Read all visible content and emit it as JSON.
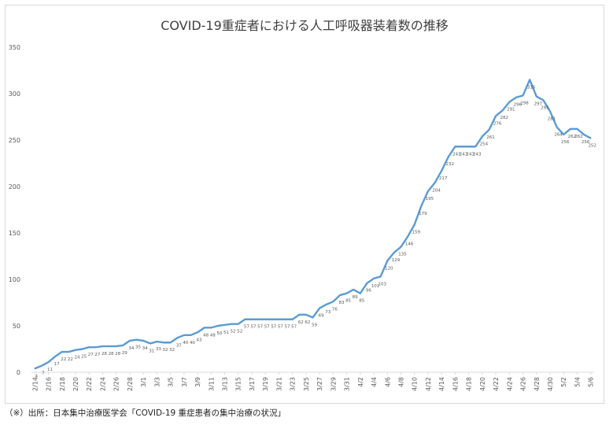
{
  "chart_data": {
    "type": "line",
    "title": "COVID-19重症者における人工呼吸器装着数の推移",
    "xlabel": "",
    "ylabel": "",
    "ylim": [
      0,
      350
    ],
    "yticks": [
      0,
      50,
      100,
      150,
      200,
      250,
      300,
      350
    ],
    "grid": false,
    "legend": "none",
    "line_color": "#5b9bd5",
    "x": [
      "2/14",
      "2/15",
      "2/16",
      "2/17",
      "2/18",
      "2/19",
      "2/20",
      "2/21",
      "2/22",
      "2/23",
      "2/24",
      "2/25",
      "2/26",
      "2/27",
      "2/28",
      "2/29",
      "3/1",
      "3/2",
      "3/3",
      "3/4",
      "3/5",
      "3/6",
      "3/7",
      "3/8",
      "3/9",
      "3/10",
      "3/11",
      "3/12",
      "3/13",
      "3/14",
      "3/15",
      "3/16",
      "3/17",
      "3/18",
      "3/19",
      "3/20",
      "3/21",
      "3/22",
      "3/23",
      "3/24",
      "3/25",
      "3/26",
      "3/27",
      "3/28",
      "3/29",
      "3/30",
      "3/31",
      "4/1",
      "4/2",
      "4/3",
      "4/4",
      "4/5",
      "4/6",
      "4/7",
      "4/8",
      "4/9",
      "4/10",
      "4/11",
      "4/12",
      "4/13",
      "4/14",
      "4/15",
      "4/16",
      "4/17",
      "4/18",
      "4/19",
      "4/20",
      "4/21",
      "4/22",
      "4/23",
      "4/24",
      "4/25",
      "4/26",
      "4/27",
      "4/28",
      "4/29",
      "4/30",
      "5/1",
      "5/2",
      "5/3",
      "5/4",
      "5/5",
      "5/6"
    ],
    "x_tick_labels": [
      "2/14",
      "2/16",
      "2/18",
      "2/20",
      "2/22",
      "2/24",
      "2/26",
      "2/28",
      "3/1",
      "3/3",
      "3/5",
      "3/7",
      "3/9",
      "3/11",
      "3/13",
      "3/15",
      "3/17",
      "3/19",
      "3/21",
      "3/23",
      "3/25",
      "3/27",
      "3/29",
      "3/31",
      "4/2",
      "4/4",
      "4/6",
      "4/8",
      "4/10",
      "4/12",
      "4/14",
      "4/16",
      "4/18",
      "4/20",
      "4/22",
      "4/24",
      "4/26",
      "4/28",
      "4/30",
      "5/2",
      "5/4",
      "5/6"
    ],
    "series": [
      {
        "values": [
          4,
          7,
          11,
          17,
          22,
          22,
          24,
          25,
          27,
          27,
          28,
          28,
          28,
          29,
          34,
          35,
          34,
          31,
          33,
          32,
          32,
          37,
          40,
          40,
          43,
          48,
          48,
          50,
          51,
          52,
          52,
          57,
          57,
          57,
          57,
          57,
          57,
          57,
          57,
          62,
          62,
          59,
          69,
          73,
          76,
          83,
          85,
          89,
          85,
          96,
          101,
          103,
          120,
          129,
          135,
          146,
          159,
          179,
          195,
          204,
          217,
          232,
          243,
          243,
          243,
          243,
          254,
          261,
          276,
          282,
          291,
          296,
          298,
          315,
          297,
          293,
          281,
          264,
          256,
          262,
          262,
          256,
          252
        ],
        "labels": [
          "4",
          "7",
          "11",
          "17",
          "22",
          "22",
          "24",
          "25",
          "27",
          "27",
          "28",
          "28",
          "28",
          "29",
          "34",
          "35",
          "34",
          "31",
          "33",
          "32",
          "32",
          "37",
          "40",
          "40",
          "43",
          "48",
          "48",
          "50",
          "51",
          "52",
          "52",
          "57",
          "57",
          "57",
          "57",
          "57",
          "57",
          "57",
          "57",
          "62",
          "62",
          "59",
          "69",
          "73",
          "76",
          "83",
          "85",
          "89",
          "85",
          "96",
          "101",
          "103",
          "120",
          "129",
          "135",
          "146",
          "159",
          "179",
          "195",
          "204",
          "217",
          "232",
          "243",
          "243",
          "243",
          "243",
          "254",
          "261",
          "276",
          "282",
          "291",
          "296",
          "298",
          "315",
          "297",
          "293",
          "281",
          "264",
          "256",
          "262",
          "262",
          "256",
          "252"
        ]
      }
    ]
  },
  "source_note": "（※）出所：日本集中治療医学会「COVID-19  重症患者の集中治療の状況」"
}
